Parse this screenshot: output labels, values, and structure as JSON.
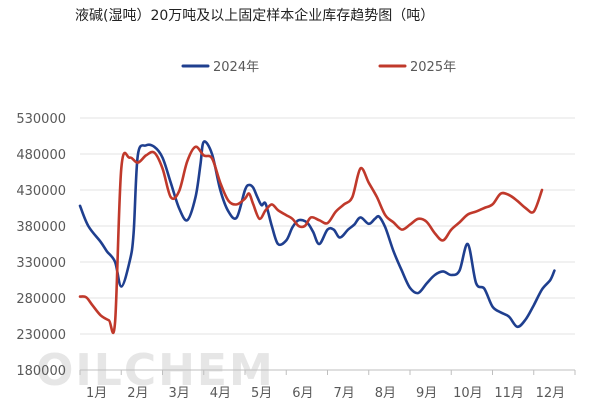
{
  "chart_data": {
    "type": "line",
    "title": "液碱(湿吨）20万吨及以上固定样本企业库存趋势图（吨）",
    "xlabel": "",
    "ylabel": "",
    "categories": [
      "1月",
      "2月",
      "3月",
      "4月",
      "5月",
      "6月",
      "7月",
      "8月",
      "9月",
      "10月",
      "11月",
      "12月"
    ],
    "ylim": [
      180000,
      530000
    ],
    "yticks": [
      "530000",
      "480000",
      "430000",
      "380000",
      "330000",
      "280000",
      "230000",
      "180000"
    ],
    "ytick_values": [
      530000,
      480000,
      430000,
      380000,
      330000,
      280000,
      230000,
      180000
    ],
    "grid": "horizontal",
    "legend_position": "top",
    "series": [
      {
        "name": "2024年",
        "color": "#1f3f8f",
        "x": [
          1.0,
          1.2,
          1.5,
          1.65,
          1.85,
          2.0,
          2.2,
          2.3,
          2.4,
          2.6,
          2.8,
          3.0,
          3.2,
          3.4,
          3.6,
          3.8,
          3.92,
          4.0,
          4.2,
          4.4,
          4.6,
          4.8,
          5.0,
          5.1,
          5.2,
          5.3,
          5.4,
          5.5,
          5.65,
          5.8,
          6.0,
          6.15,
          6.3,
          6.5,
          6.65,
          6.8,
          7.0,
          7.15,
          7.3,
          7.5,
          7.65,
          7.8,
          8.0,
          8.15,
          8.25,
          8.4,
          8.6,
          8.8,
          9.0,
          9.2,
          9.4,
          9.6,
          9.8,
          10.0,
          10.2,
          10.4,
          10.6,
          10.8,
          11.0,
          11.2,
          11.4,
          11.6,
          11.8,
          12.0,
          12.2,
          12.4,
          12.5
        ],
        "y": [
          408000,
          380000,
          358000,
          345000,
          330000,
          296000,
          330000,
          370000,
          478000,
          492000,
          490000,
          475000,
          440000,
          405000,
          388000,
          420000,
          465000,
          497000,
          480000,
          430000,
          400000,
          392000,
          430000,
          437000,
          433000,
          420000,
          409000,
          411000,
          380000,
          355000,
          360000,
          378000,
          388000,
          385000,
          372000,
          355000,
          375000,
          375000,
          364000,
          375000,
          382000,
          392000,
          383000,
          390000,
          393000,
          378000,
          345000,
          318000,
          294000,
          287000,
          300000,
          312000,
          317000,
          312000,
          318000,
          355000,
          301000,
          293000,
          268000,
          260000,
          254000,
          240000,
          250000,
          270000,
          292000,
          305000,
          318000
        ]
      },
      {
        "name": "2025年",
        "color": "#c0392b",
        "x": [
          1.0,
          1.15,
          1.3,
          1.5,
          1.7,
          1.85,
          2.0,
          2.2,
          2.4,
          2.6,
          2.8,
          3.0,
          3.2,
          3.4,
          3.6,
          3.8,
          4.0,
          4.2,
          4.4,
          4.6,
          4.8,
          5.0,
          5.1,
          5.2,
          5.35,
          5.5,
          5.65,
          5.8,
          6.0,
          6.15,
          6.3,
          6.45,
          6.6,
          6.8,
          7.0,
          7.2,
          7.4,
          7.6,
          7.8,
          8.0,
          8.2,
          8.4,
          8.6,
          8.8,
          9.0,
          9.2,
          9.4,
          9.6,
          9.8,
          10.0,
          10.2,
          10.4,
          10.6,
          10.8,
          11.0,
          11.2,
          11.4,
          11.6,
          11.8,
          12.0,
          12.2
        ],
        "y": [
          282000,
          281000,
          270000,
          256000,
          249000,
          247000,
          460000,
          475000,
          468000,
          478000,
          482000,
          460000,
          420000,
          428000,
          470000,
          490000,
          478000,
          474000,
          440000,
          415000,
          410000,
          418000,
          425000,
          410000,
          390000,
          402000,
          410000,
          402000,
          395000,
          390000,
          380000,
          380000,
          392000,
          388000,
          384000,
          400000,
          410000,
          420000,
          460000,
          440000,
          420000,
          395000,
          385000,
          375000,
          382000,
          390000,
          386000,
          370000,
          360000,
          375000,
          385000,
          396000,
          400000,
          405000,
          410000,
          425000,
          423000,
          415000,
          405000,
          400000,
          430000
        ]
      }
    ]
  }
}
